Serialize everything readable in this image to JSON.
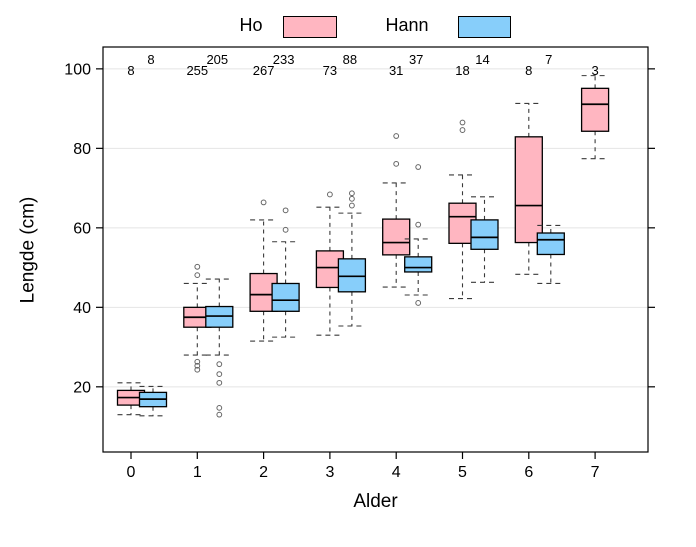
{
  "chart_data": {
    "type": "boxplot",
    "title": "",
    "xlabel": "Alder",
    "ylabel": "Lengde (cm)",
    "categories": [
      "0",
      "1",
      "2",
      "3",
      "4",
      "5",
      "6",
      "7"
    ],
    "yticks": [
      20,
      40,
      60,
      80,
      100
    ],
    "ylim": [
      3.6,
      105.5
    ],
    "grid": true,
    "legend_position": "top",
    "series": [
      {
        "name": "Ho",
        "color": "#FFB6C1",
        "counts": [
          8,
          255,
          267,
          73,
          31,
          18,
          8,
          3
        ],
        "boxes": [
          {
            "low": 13.0,
            "q1": 15.4,
            "median": 17.3,
            "q3": 19.1,
            "high": 21.0,
            "outliers": []
          },
          {
            "low": 28.0,
            "q1": 35.0,
            "median": 37.5,
            "q3": 40.0,
            "high": 46.0,
            "outliers": [
              48.1,
              50.2,
              26.3,
              25.3,
              24.3
            ]
          },
          {
            "low": 31.5,
            "q1": 39.0,
            "median": 43.2,
            "q3": 48.5,
            "high": 62.0,
            "outliers": [
              66.4
            ]
          },
          {
            "low": 33.0,
            "q1": 45.0,
            "median": 50.0,
            "q3": 54.2,
            "high": 65.2,
            "outliers": [
              68.4
            ]
          },
          {
            "low": 45.1,
            "q1": 53.2,
            "median": 56.3,
            "q3": 62.2,
            "high": 71.3,
            "outliers": [
              76.1,
              83.1
            ]
          },
          {
            "low": 42.2,
            "q1": 56.1,
            "median": 62.8,
            "q3": 66.2,
            "high": 73.3,
            "outliers": [
              84.6,
              86.5
            ]
          },
          {
            "low": 48.3,
            "q1": 56.3,
            "median": 65.6,
            "q3": 82.9,
            "high": 91.3,
            "outliers": []
          },
          {
            "low": 77.4,
            "q1": 84.3,
            "median": 91.1,
            "q3": 95.1,
            "high": 98.3,
            "outliers": []
          }
        ]
      },
      {
        "name": "Hann",
        "color": "#87CEFA",
        "counts": [
          8,
          205,
          233,
          88,
          37,
          14,
          7,
          null
        ],
        "boxes": [
          {
            "low": 12.7,
            "q1": 15.0,
            "median": 16.9,
            "q3": 18.6,
            "high": 20.1,
            "outliers": []
          },
          {
            "low": 28.0,
            "q1": 35.0,
            "median": 37.8,
            "q3": 40.2,
            "high": 47.1,
            "outliers": [
              25.7,
              23.2,
              21.0,
              14.7,
              13.0
            ]
          },
          {
            "low": 32.5,
            "q1": 39.0,
            "median": 41.8,
            "q3": 46.0,
            "high": 56.5,
            "outliers": [
              59.5,
              64.4
            ]
          },
          {
            "low": 35.3,
            "q1": 43.9,
            "median": 47.8,
            "q3": 52.2,
            "high": 63.7,
            "outliers": [
              65.6,
              67.3,
              68.7
            ]
          },
          {
            "low": 43.1,
            "q1": 48.9,
            "median": 50.0,
            "q3": 52.7,
            "high": 57.2,
            "outliers": [
              41.1,
              60.8,
              75.3
            ]
          },
          {
            "low": 46.3,
            "q1": 54.6,
            "median": 57.6,
            "q3": 62.0,
            "high": 67.8,
            "outliers": []
          },
          {
            "low": 46.0,
            "q1": 53.3,
            "median": 57.0,
            "q3": 58.7,
            "high": 60.6,
            "outliers": []
          },
          null
        ]
      }
    ]
  }
}
